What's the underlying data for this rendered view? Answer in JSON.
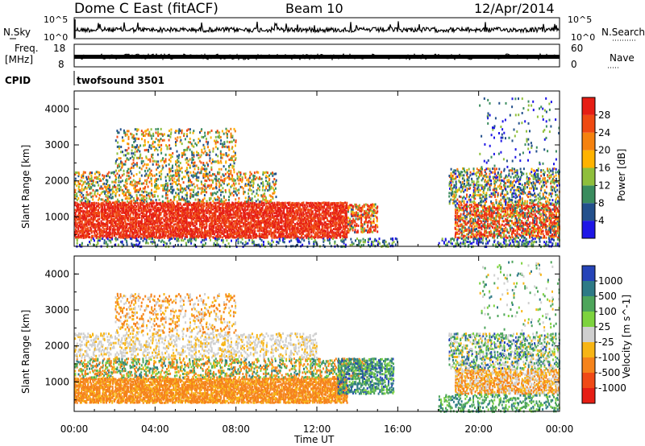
{
  "header": {
    "station": "Dome C East (fitACF)",
    "beam": "Beam 10",
    "date": "12/Apr/2014"
  },
  "strip": {
    "nsky_label": "N.Sky",
    "nsearch_label": "N.Search",
    "tick_1e5": "10^5",
    "tick_1e0": "10^0",
    "freq_label": "Freq.",
    "freq_unit": "[MHz]",
    "freq_ticks": [
      "18",
      "8"
    ],
    "nave_label": "Nave",
    "nave_ticks": [
      "60",
      "0"
    ],
    "cpid_label": "CPID",
    "cpid_value": "twofsound 3501"
  },
  "panels": {
    "power": {
      "ylabel": "Slant Range [km]",
      "yticks": [
        "1000",
        "2000",
        "3000",
        "4000"
      ],
      "cbar_label": "Power [dB]",
      "cbar_ticks": [
        "4",
        "8",
        "12",
        "16",
        "20",
        "24",
        "28"
      ],
      "cbar_colors": [
        "#1e16e6",
        "#23508c",
        "#3a8c5e",
        "#8fbf3c",
        "#ffb300",
        "#f5820f",
        "#ef4a12",
        "#e61e14"
      ]
    },
    "velocity": {
      "ylabel": "Slant Range [km]",
      "yticks": [
        "1000",
        "2000",
        "3000",
        "4000"
      ],
      "cbar_label": "Velocity [m s^-1]",
      "cbar_ticks": [
        "1000",
        "500",
        "100",
        "25",
        "-25",
        "-100",
        "-500",
        "-1000"
      ],
      "cbar_colors": [
        "#2644b8",
        "#2e7a86",
        "#4ea55b",
        "#7dd33e",
        "#cfcfcf",
        "#f7b515",
        "#f5831b",
        "#f04a16",
        "#e61e14"
      ]
    }
  },
  "xaxis": {
    "label": "Time UT",
    "ticks": [
      "00:00",
      "04:00",
      "08:00",
      "12:00",
      "16:00",
      "20:00",
      "00:00"
    ]
  },
  "chart_data": {
    "type": "heatmap",
    "title": "Dome C East (fitACF)  Beam 10  12/Apr/2014",
    "x_range_hours": [
      0,
      24
    ],
    "y_range_km": [
      180,
      4500
    ],
    "panels": [
      "Power [dB]",
      "Velocity [m s^-1]"
    ],
    "power_range_db": [
      0,
      30
    ],
    "velocity_range": [
      -1000,
      1000
    ]
  }
}
